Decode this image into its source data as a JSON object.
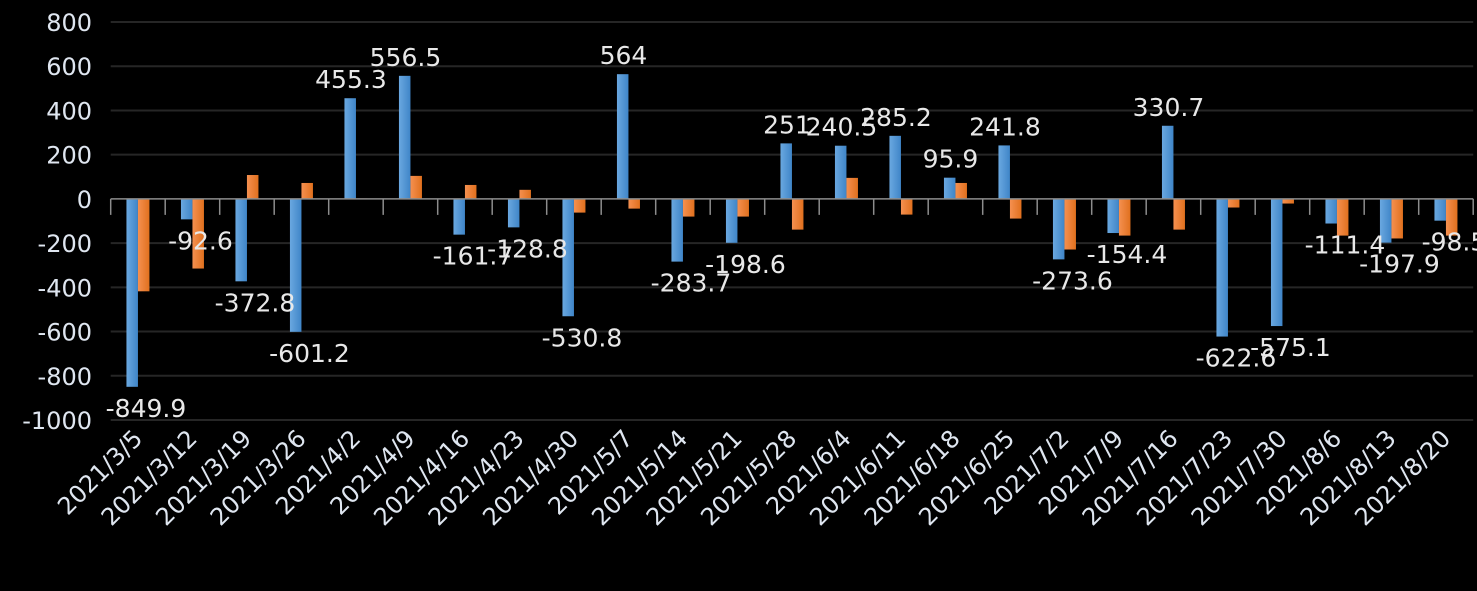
{
  "chart_data": {
    "type": "bar",
    "title": "",
    "xlabel": "",
    "ylabel": "",
    "ylim": [
      -1000,
      800
    ],
    "yticks": [
      800,
      600,
      400,
      200,
      0,
      -200,
      -400,
      -600,
      -800,
      -1000
    ],
    "grid": true,
    "legend": "none",
    "categories": [
      "2021/3/5",
      "2021/3/12",
      "2021/3/19",
      "2021/3/26",
      "2021/4/2",
      "2021/4/9",
      "2021/4/16",
      "2021/4/23",
      "2021/4/30",
      "2021/5/7",
      "2021/5/14",
      "2021/5/21",
      "2021/5/28",
      "2021/6/4",
      "2021/6/11",
      "2021/6/18",
      "2021/6/25",
      "2021/7/2",
      "2021/7/9",
      "2021/7/16",
      "2021/7/23",
      "2021/7/30",
      "2021/8/6",
      "2021/8/13",
      "2021/8/20"
    ],
    "series": [
      {
        "color": "#5b9bd5",
        "labeled": true,
        "values": [
          -849.9,
          -92.6,
          -372.8,
          -601.2,
          455.3,
          556.5,
          -161.7,
          -128.8,
          -530.8,
          564,
          -283.7,
          -198.6,
          251,
          240.5,
          285.2,
          95.9,
          241.8,
          -273.6,
          -154.4,
          330.7,
          -622.6,
          -575.1,
          -111.4,
          -197.9,
          -98.5
        ]
      },
      {
        "color": "#ed7d31",
        "labeled": false,
        "values": [
          -418,
          -315,
          108,
          72,
          2,
          104,
          63,
          41,
          -62,
          -44,
          -80,
          -80,
          -139,
          95,
          -71,
          72,
          -89,
          -229,
          -166,
          -139,
          -39,
          -21,
          -166,
          -179,
          -166
        ]
      }
    ]
  }
}
